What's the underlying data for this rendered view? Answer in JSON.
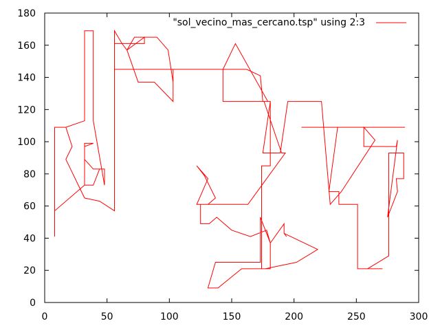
{
  "chart_data": {
    "type": "line",
    "title": "",
    "xlabel": "",
    "ylabel": "",
    "xlim": [
      0,
      300
    ],
    "ylim": [
      0,
      180
    ],
    "x_ticks": [
      0,
      50,
      100,
      150,
      200,
      250,
      300
    ],
    "y_ticks": [
      0,
      20,
      40,
      60,
      80,
      100,
      120,
      140,
      160,
      180
    ],
    "grid": false,
    "legend_position": "top-right",
    "series": [
      {
        "name": "\"sol_vecino_mas_cercano.tsp\" using 2:3",
        "color": "#ff0000",
        "x": [
          8,
          8,
          17,
          32,
          32,
          39,
          39,
          48,
          48,
          48,
          39,
          32,
          32,
          39,
          39,
          32,
          32,
          39,
          44,
          44,
          39,
          32,
          8,
          8,
          17,
          22,
          22,
          17,
          17,
          32,
          32,
          44,
          56,
          56,
          62,
          66,
          72,
          90,
          99,
          103,
          103,
          90,
          72,
          66,
          56,
          56,
          80,
          80,
          66,
          75,
          88,
          103,
          103,
          139,
          162,
          173,
          175,
          181,
          181,
          174,
          174,
          181,
          181,
          192,
          192,
          194,
          192,
          219,
          202,
          177,
          175,
          158,
          139,
          131,
          137,
          173,
          173,
          181,
          181,
          178,
          165,
          150,
          138,
          132,
          125,
          125,
          131,
          137,
          128,
          122,
          122,
          131,
          122,
          137,
          163,
          193,
          192,
          190,
          176,
          166,
          143,
          143,
          153,
          179,
          181,
          175,
          189,
          195,
          222,
          229,
          229,
          238,
          238,
          265,
          265,
          256,
          256,
          282,
          283,
          283,
          275,
          275,
          283,
          282,
          288,
          288,
          281,
          281,
          276,
          276,
          259,
          259,
          267,
          271,
          260,
          251,
          251,
          236,
          236,
          229,
          228,
          235,
          251,
          251,
          255,
          255,
          262,
          269,
          277,
          289,
          289,
          289,
          289,
          288,
          288,
          283,
          277,
          267,
          260,
          246,
          240,
          229,
          229,
          236,
          230,
          229,
          229,
          206,
          206,
          221,
          236,
          253,
          255,
          255,
          269,
          281,
          288
        ],
        "y": [
          41,
          109,
          109,
          113,
          169,
          169,
          113,
          73,
          73,
          83,
          83,
          89,
          97,
          99,
          99,
          99,
          73,
          73,
          83,
          83,
          73,
          73,
          57,
          109,
          109,
          97,
          97,
          89,
          89,
          65,
          65,
          63,
          57,
          169,
          161,
          157,
          165,
          165,
          157,
          137,
          145,
          145,
          145,
          145,
          145,
          161,
          161,
          165,
          157,
          137,
          137,
          125,
          145,
          145,
          145,
          141,
          125,
          125,
          85,
          85,
          21,
          21,
          37,
          49,
          43,
          41,
          43,
          33,
          25,
          21,
          21,
          21,
          9,
          9,
          25,
          25,
          53,
          37,
          37,
          45,
          41,
          45,
          53,
          49,
          49,
          61,
          61,
          65,
          79,
          85,
          85,
          77,
          61,
          61,
          61,
          93,
          93,
          93,
          125,
          125,
          125,
          145,
          161,
          125,
          125,
          93,
          93,
          125,
          125,
          61,
          61,
          69,
          69,
          101,
          101,
          109,
          97,
          97,
          101,
          101,
          53,
          53,
          69,
          77,
          77,
          93,
          93,
          93,
          93,
          29,
          21,
          21,
          21,
          21,
          21,
          21,
          61,
          61,
          69,
          69,
          69,
          109,
          109,
          109,
          109,
          109,
          109,
          109,
          109,
          109,
          109,
          109,
          109,
          109,
          109,
          109,
          109,
          109,
          109,
          109,
          109,
          109,
          109,
          109,
          109,
          109,
          109,
          109,
          109,
          109,
          109,
          109,
          109,
          109,
          109,
          109,
          109
        ]
      }
    ]
  }
}
